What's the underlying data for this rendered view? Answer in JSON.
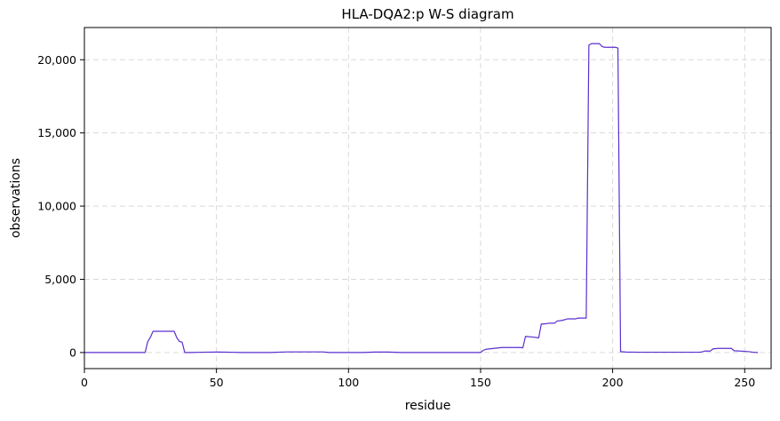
{
  "chart_data": {
    "type": "line",
    "title": "HLA-DQA2:p W-S diagram",
    "xlabel": "residue",
    "ylabel": "observations",
    "xlim": [
      0,
      260
    ],
    "ylim": [
      -1100,
      22200
    ],
    "xticks": [
      0,
      50,
      100,
      150,
      200,
      250
    ],
    "xtick_labels": [
      "0",
      "50",
      "100",
      "150",
      "200",
      "250"
    ],
    "yticks": [
      0,
      5000,
      10000,
      15000,
      20000
    ],
    "ytick_labels": [
      "0",
      "5,000",
      "10,000",
      "15,000",
      "20,000"
    ],
    "grid": true,
    "line_color": "#5b2fd0",
    "series": [
      {
        "x": [
          0,
          23,
          24,
          25,
          26,
          27,
          28,
          29,
          30,
          33,
          34,
          35,
          36,
          37,
          38,
          40,
          45,
          50,
          55,
          60,
          70,
          77,
          80,
          85,
          90,
          93,
          95,
          100,
          105,
          110,
          115,
          120,
          125,
          130,
          135,
          140,
          145,
          148,
          150,
          151,
          152,
          155,
          157,
          158,
          160,
          165,
          166,
          167,
          170,
          172,
          173,
          174,
          176,
          178,
          179,
          181,
          183,
          185,
          186,
          187,
          189,
          190,
          191,
          192,
          193,
          194,
          195,
          196,
          197,
          200,
          201,
          202,
          203,
          205,
          210,
          220,
          230,
          233,
          234,
          235,
          237,
          238,
          240,
          243,
          245,
          246,
          250,
          252,
          253,
          255
        ],
        "y": [
          0,
          0,
          750,
          1050,
          1450,
          1450,
          1450,
          1450,
          1450,
          1450,
          1450,
          1000,
          750,
          700,
          0,
          0,
          20,
          30,
          20,
          0,
          0,
          40,
          40,
          40,
          40,
          0,
          0,
          0,
          0,
          30,
          30,
          0,
          0,
          0,
          0,
          0,
          0,
          0,
          0,
          150,
          220,
          280,
          320,
          340,
          340,
          340,
          320,
          1100,
          1050,
          1000,
          1950,
          1950,
          2000,
          2000,
          2150,
          2200,
          2300,
          2300,
          2300,
          2350,
          2350,
          2350,
          21000,
          21100,
          21100,
          21100,
          21100,
          20900,
          20850,
          20850,
          20850,
          20800,
          60,
          30,
          20,
          20,
          20,
          20,
          50,
          100,
          100,
          250,
          280,
          280,
          280,
          120,
          80,
          50,
          20,
          0
        ]
      }
    ]
  }
}
